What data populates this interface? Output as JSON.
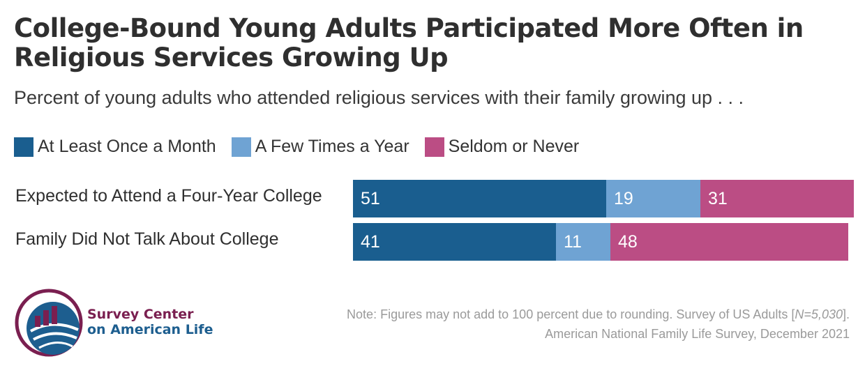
{
  "title": "College-Bound Young Adults Participated More Often in Religious Services Growing Up",
  "subtitle": "Percent of young adults who attended religious services with their family growing up . . .",
  "colors": {
    "monthly": "#1a5e8f",
    "few_times": "#6fa3d3",
    "seldom": "#bb4d84"
  },
  "legend": [
    {
      "label": "At Least Once a Month",
      "color": "#1a5e8f"
    },
    {
      "label": "A Few Times a Year",
      "color": "#6fa3d3"
    },
    {
      "label": "Seldom or Never",
      "color": "#bb4d84"
    }
  ],
  "chart_data": {
    "type": "bar",
    "orientation": "horizontal",
    "stacked": true,
    "title": "College-Bound Young Adults Participated More Often in Religious Services Growing Up",
    "subtitle": "Percent of young adults who attended religious services with their family growing up . . .",
    "categories": [
      "Expected to Attend a Four-Year College",
      "Family Did Not Talk About College"
    ],
    "series": [
      {
        "name": "At Least Once a Month",
        "values": [
          51,
          41
        ],
        "color": "#1a5e8f"
      },
      {
        "name": "A Few Times a Year",
        "values": [
          19,
          11
        ],
        "color": "#6fa3d3"
      },
      {
        "name": "Seldom or Never",
        "values": [
          31,
          48
        ],
        "color": "#bb4d84"
      }
    ],
    "xlim": [
      0,
      101
    ],
    "legend_position": "top-left",
    "grid": false
  },
  "organization": {
    "line1": "Survey Center",
    "line2": "on American Life",
    "logo_icon": "bar-chart-globe-icon"
  },
  "note": {
    "prefix": "Note: Figures may not add to 100 percent due to rounding. Survey of US Adults [",
    "n_italic": "N=5,030",
    "suffix": "].",
    "source": "American National Family Life Survey, December 2021"
  }
}
